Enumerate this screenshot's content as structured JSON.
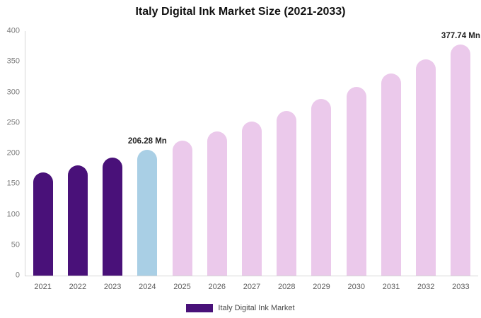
{
  "chart_data": {
    "type": "bar",
    "title": "Italy Digital Ink Market Size (2021-2033)",
    "unit": "Mn",
    "categories": [
      "2021",
      "2022",
      "2023",
      "2024",
      "2025",
      "2026",
      "2027",
      "2028",
      "2029",
      "2030",
      "2031",
      "2032",
      "2033"
    ],
    "values": [
      168.6,
      180.3,
      192.9,
      206.28,
      220.6,
      236.0,
      252.4,
      269.9,
      288.7,
      308.8,
      330.2,
      353.2,
      377.74
    ],
    "bar_colors": [
      "#491179",
      "#491179",
      "#491179",
      "#a9cfe5",
      "#ebc9eb",
      "#ebc9eb",
      "#ebc9eb",
      "#ebc9eb",
      "#ebc9eb",
      "#ebc9eb",
      "#ebc9eb",
      "#ebc9eb",
      "#ebc9eb"
    ],
    "annotations": [
      {
        "index": 3,
        "text": "206.28 Mn"
      },
      {
        "index": 12,
        "text": "377.74 Mn"
      }
    ],
    "ylim": [
      0,
      400
    ],
    "yticks": [
      0,
      50,
      100,
      150,
      200,
      250,
      300,
      350,
      400
    ],
    "grid": "off",
    "legend": [
      {
        "label": "Italy Digital Ink Market",
        "color": "#491179"
      }
    ],
    "legend_position": "bottom",
    "xlabel": "",
    "ylabel": ""
  }
}
